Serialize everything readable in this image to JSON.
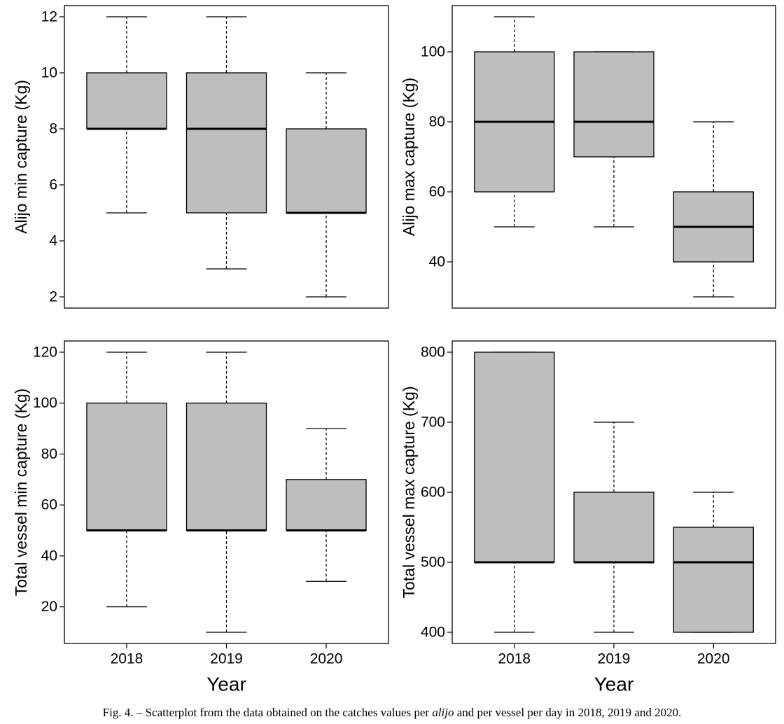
{
  "chart_data": [
    {
      "type": "box",
      "ylabel": "Alijo min capture (Kg)",
      "xlabel": "",
      "categories": [
        "2018",
        "2019",
        "2020"
      ],
      "boxes": [
        {
          "min": 5,
          "q1": 8,
          "median": 8,
          "q3": 10,
          "max": 12
        },
        {
          "min": 3,
          "q1": 5,
          "median": 8,
          "q3": 10,
          "max": 12
        },
        {
          "min": 2,
          "q1": 5,
          "median": 5,
          "q3": 8,
          "max": 10
        }
      ],
      "ylim": [
        1.6,
        12.4
      ],
      "yticks": [
        "2",
        "4",
        "6",
        "8",
        "10",
        "12"
      ],
      "show_x_ticks": false
    },
    {
      "type": "box",
      "ylabel": "Alijo max capture (Kg)",
      "xlabel": "",
      "categories": [
        "2018",
        "2019",
        "2020"
      ],
      "boxes": [
        {
          "min": 50,
          "q1": 60,
          "median": 80,
          "q3": 100,
          "max": 110
        },
        {
          "min": 50,
          "q1": 70,
          "median": 80,
          "q3": 100,
          "max": 100
        },
        {
          "min": 30,
          "q1": 40,
          "median": 50,
          "q3": 60,
          "max": 80
        }
      ],
      "ylim": [
        26.8,
        113.2
      ],
      "yticks": [
        "40",
        "60",
        "80",
        "100"
      ],
      "show_x_ticks": false
    },
    {
      "type": "box",
      "ylabel": "Total vessel min capture (Kg)",
      "xlabel": "Year",
      "categories": [
        "2018",
        "2019",
        "2020"
      ],
      "boxes": [
        {
          "min": 20,
          "q1": 50,
          "median": 50,
          "q3": 100,
          "max": 120
        },
        {
          "min": 10,
          "q1": 50,
          "median": 50,
          "q3": 100,
          "max": 120
        },
        {
          "min": 30,
          "q1": 50,
          "median": 50,
          "q3": 70,
          "max": 90
        }
      ],
      "ylim": [
        5.6,
        124.4
      ],
      "yticks": [
        "20",
        "40",
        "60",
        "80",
        "100",
        "120"
      ],
      "show_x_ticks": true
    },
    {
      "type": "box",
      "ylabel": "Total vessel max capture (Kg)",
      "xlabel": "Year",
      "categories": [
        "2018",
        "2019",
        "2020"
      ],
      "boxes": [
        {
          "min": 400,
          "q1": 500,
          "median": 500,
          "q3": 800,
          "max": 800
        },
        {
          "min": 400,
          "q1": 500,
          "median": 500,
          "q3": 600,
          "max": 700
        },
        {
          "min": 400,
          "q1": 400,
          "median": 500,
          "q3": 550,
          "max": 600
        }
      ],
      "ylim": [
        384,
        816
      ],
      "yticks": [
        "400",
        "500",
        "600",
        "700",
        "800"
      ],
      "show_x_ticks": true
    }
  ],
  "caption": {
    "prefix": "Fig. 4. – Scatterplot from the data obtained on the catches values per ",
    "italic": "alijo",
    "suffix": " and per vessel per day in 2018, 2019 and 2020."
  },
  "colors": {
    "box_fill": "#bebebe",
    "stroke": "#000000"
  }
}
